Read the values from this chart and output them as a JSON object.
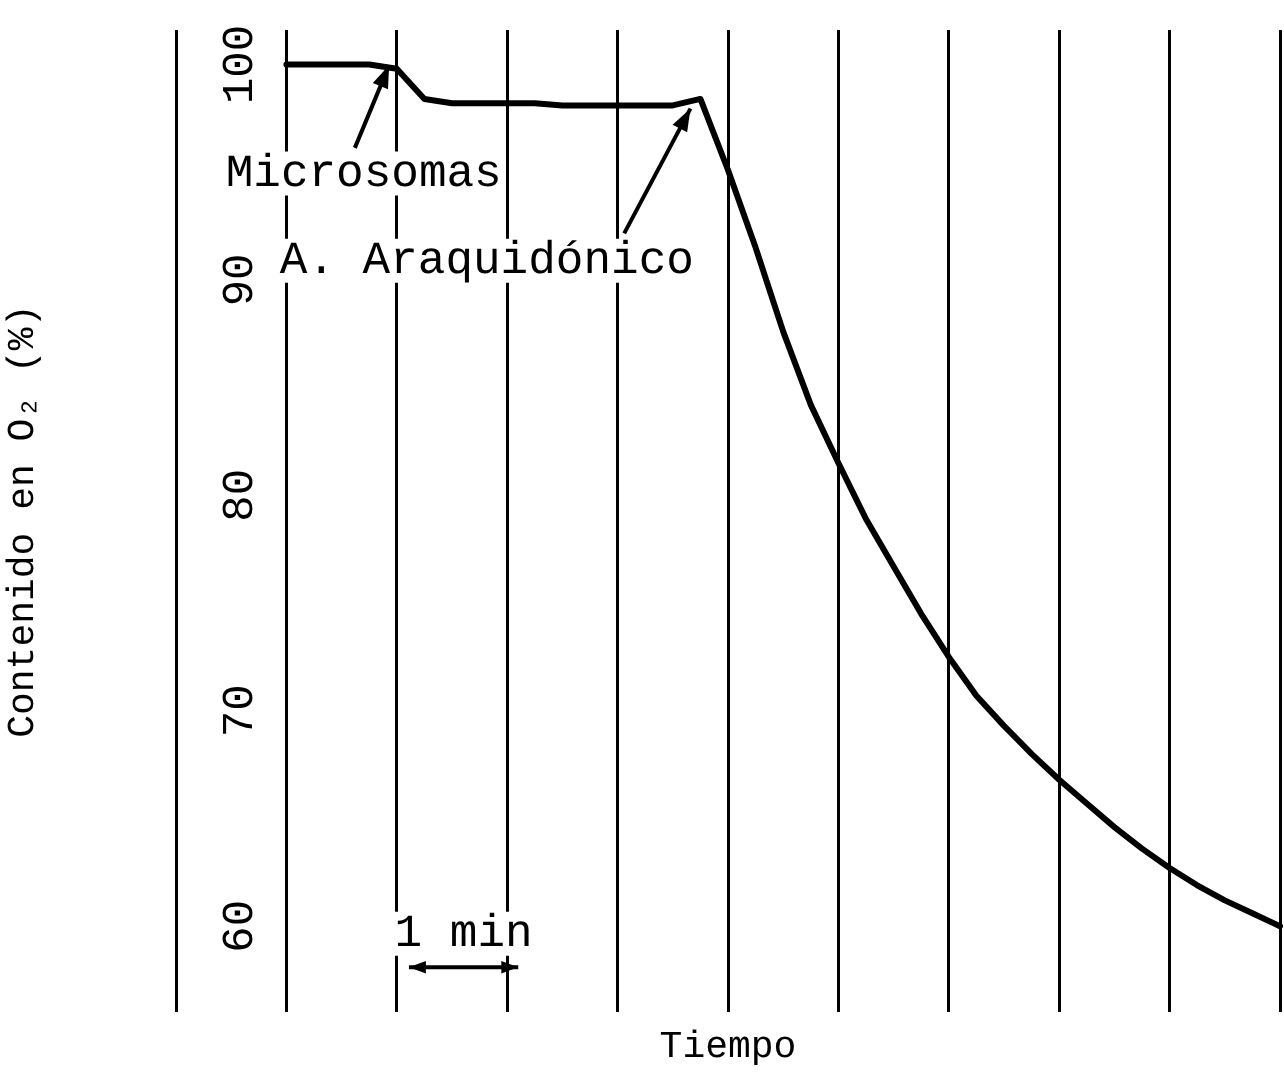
{
  "chart_data": {
    "type": "line",
    "xlabel": "Tiempo",
    "ylabel": "Contenido en O₂ (%)",
    "categories": [
      null,
      null,
      null,
      null,
      null,
      null,
      null,
      null,
      null,
      null,
      null,
      null,
      null,
      null,
      null,
      null,
      null,
      null,
      null,
      null,
      null,
      null,
      null,
      null,
      null,
      null,
      null,
      null,
      null,
      null,
      null,
      null,
      null,
      null,
      null,
      null,
      null,
      null,
      null,
      null,
      null
    ],
    "series": [
      {
        "color": "#000000",
        "values": [
          null,
          null,
          null,
          null,
          100,
          100,
          100,
          100,
          99.8,
          98.4,
          98.2,
          98.2,
          98.2,
          98.2,
          98.1,
          98.1,
          98.1,
          98.1,
          98.1,
          98.4,
          95.1,
          91.5,
          87.6,
          84.2,
          81.5,
          78.9,
          76.7,
          74.5,
          72.5,
          70.7,
          69.3,
          68.0,
          66.8,
          65.7,
          64.6,
          63.6,
          62.7,
          61.9,
          61.2,
          60.6,
          60.0
        ]
      }
    ],
    "ylim": [
      56,
      101.6
    ],
    "yticks": [
      100,
      90,
      80,
      70,
      60
    ],
    "tick_labels": "y",
    "grid": "x",
    "legend": false,
    "marker": "none",
    "line_style": "solid",
    "annotations": [
      "Microsomas",
      "A. Araquidónico",
      "1 min"
    ]
  }
}
